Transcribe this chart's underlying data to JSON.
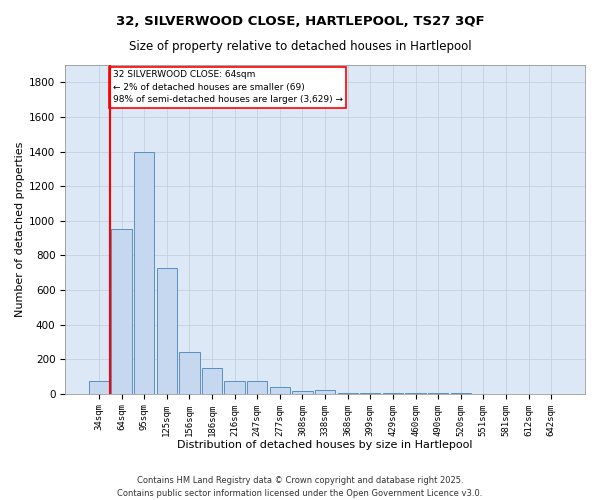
{
  "title_line1": "32, SILVERWOOD CLOSE, HARTLEPOOL, TS27 3QF",
  "title_line2": "Size of property relative to detached houses in Hartlepool",
  "xlabel": "Distribution of detached houses by size in Hartlepool",
  "ylabel": "Number of detached properties",
  "categories": [
    "34sqm",
    "64sqm",
    "95sqm",
    "125sqm",
    "156sqm",
    "186sqm",
    "216sqm",
    "247sqm",
    "277sqm",
    "308sqm",
    "338sqm",
    "368sqm",
    "399sqm",
    "429sqm",
    "460sqm",
    "490sqm",
    "520sqm",
    "551sqm",
    "581sqm",
    "612sqm",
    "642sqm"
  ],
  "values": [
    75,
    950,
    1400,
    730,
    240,
    150,
    75,
    75,
    40,
    15,
    20,
    5,
    5,
    5,
    5,
    5,
    5,
    0,
    0,
    0,
    0
  ],
  "bar_color": "#c5d8ef",
  "bar_edge_color": "#5a8fc0",
  "vline_x": 0.5,
  "vline_color": "red",
  "annotation_text": "32 SILVERWOOD CLOSE: 64sqm\n← 2% of detached houses are smaller (69)\n98% of semi-detached houses are larger (3,629) →",
  "annotation_box_color": "white",
  "annotation_box_edge": "red",
  "ylim": [
    0,
    1900
  ],
  "yticks": [
    0,
    200,
    400,
    600,
    800,
    1000,
    1200,
    1400,
    1600,
    1800
  ],
  "grid_color": "#c0ccd8",
  "bg_color": "#dce8f5",
  "footer_line1": "Contains HM Land Registry data © Crown copyright and database right 2025.",
  "footer_line2": "Contains public sector information licensed under the Open Government Licence v3.0."
}
